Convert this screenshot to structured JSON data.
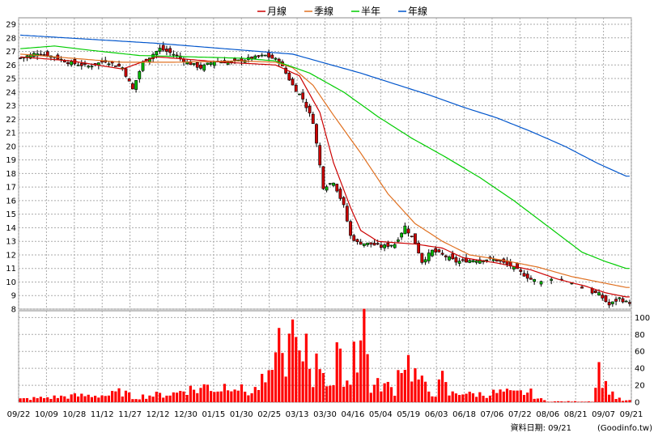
{
  "chart_data": {
    "type": "candlestick-with-volume",
    "legend": [
      {
        "name": "月線",
        "color": "#cc0000"
      },
      {
        "name": "季線",
        "color": "#e07020"
      },
      {
        "name": "半年",
        "color": "#00cc00"
      },
      {
        "name": "年線",
        "color": "#0055cc"
      }
    ],
    "legend_position": "top-center",
    "price_axis": {
      "min": 8,
      "max": 29,
      "ticks": [
        8,
        9,
        10,
        11,
        12,
        13,
        14,
        15,
        16,
        17,
        18,
        19,
        20,
        21,
        22,
        23,
        24,
        25,
        26,
        27,
        28,
        29
      ],
      "position": "left"
    },
    "volume_axis": {
      "min": 0,
      "max": 100,
      "ticks": [
        0,
        20,
        40,
        60,
        80,
        100
      ],
      "position": "right"
    },
    "x_labels": [
      "09/22",
      "10/09",
      "10/28",
      "11/12",
      "11/27",
      "12/12",
      "12/30",
      "01/15",
      "01/30",
      "02/25",
      "03/13",
      "03/30",
      "04/16",
      "05/04",
      "05/19",
      "06/03",
      "06/18",
      "07/06",
      "07/22",
      "08/06",
      "08/21",
      "09/07",
      "09/21"
    ],
    "grid": true,
    "up_color": "#00bb00",
    "down_color": "#cc0000",
    "volume_color": "#ff0000",
    "price_anchors": [
      [
        0,
        26.5
      ],
      [
        5,
        26.9
      ],
      [
        10,
        26.6
      ],
      [
        14,
        26.2
      ],
      [
        20,
        25.9
      ],
      [
        25,
        26.3
      ],
      [
        30,
        25.8
      ],
      [
        33,
        24.2
      ],
      [
        36,
        26.2
      ],
      [
        41,
        27.2
      ],
      [
        45,
        26.8
      ],
      [
        49,
        26.2
      ],
      [
        53,
        25.8
      ],
      [
        57,
        26.3
      ],
      [
        62,
        26.2
      ],
      [
        66,
        26.4
      ],
      [
        72,
        26.7
      ],
      [
        76,
        26.3
      ],
      [
        80,
        24.5
      ],
      [
        83,
        23.5
      ],
      [
        86,
        21.8
      ],
      [
        89,
        17.0
      ],
      [
        92,
        17.4
      ],
      [
        95,
        15.6
      ],
      [
        97,
        13.4
      ],
      [
        99,
        12.9
      ],
      [
        103,
        12.8
      ],
      [
        106,
        12.6
      ],
      [
        110,
        12.8
      ],
      [
        113,
        14.1
      ],
      [
        116,
        12.9
      ],
      [
        118,
        11.5
      ],
      [
        121,
        12.3
      ],
      [
        124,
        12.0
      ],
      [
        128,
        11.5
      ],
      [
        132,
        11.6
      ],
      [
        136,
        11.7
      ],
      [
        140,
        11.6
      ],
      [
        144,
        11.2
      ],
      [
        147,
        10.7
      ],
      [
        150,
        10.2
      ],
      [
        153,
        10.0
      ],
      [
        156,
        10.3
      ],
      [
        160,
        10.1
      ],
      [
        163,
        9.9
      ],
      [
        166,
        9.4
      ],
      [
        170,
        9.1
      ],
      [
        173,
        8.3
      ],
      [
        176,
        8.8
      ],
      [
        178,
        8.5
      ]
    ],
    "volume_anchors": [
      [
        0,
        4
      ],
      [
        8,
        6
      ],
      [
        15,
        8
      ],
      [
        22,
        9
      ],
      [
        26,
        9
      ],
      [
        30,
        14
      ],
      [
        33,
        6
      ],
      [
        38,
        9
      ],
      [
        42,
        10
      ],
      [
        46,
        12
      ],
      [
        48,
        18
      ],
      [
        52,
        16
      ],
      [
        55,
        22
      ],
      [
        58,
        16
      ],
      [
        62,
        27
      ],
      [
        65,
        16
      ],
      [
        68,
        12
      ],
      [
        71,
        25
      ],
      [
        74,
        30
      ],
      [
        75,
        106
      ],
      [
        77,
        55
      ],
      [
        79,
        65
      ],
      [
        80,
        92
      ],
      [
        82,
        48
      ],
      [
        83,
        63
      ],
      [
        84,
        88
      ],
      [
        86,
        33
      ],
      [
        88,
        60
      ],
      [
        90,
        30
      ],
      [
        92,
        22
      ],
      [
        93,
        56
      ],
      [
        95,
        40
      ],
      [
        97,
        22
      ],
      [
        98,
        106
      ],
      [
        99,
        60
      ],
      [
        101,
        106
      ],
      [
        103,
        18
      ],
      [
        106,
        24
      ],
      [
        108,
        20
      ],
      [
        110,
        16
      ],
      [
        112,
        60
      ],
      [
        114,
        52
      ],
      [
        116,
        36
      ],
      [
        118,
        24
      ],
      [
        120,
        15
      ],
      [
        122,
        12
      ],
      [
        124,
        30
      ],
      [
        126,
        10
      ],
      [
        128,
        12
      ],
      [
        130,
        14
      ],
      [
        132,
        10
      ],
      [
        134,
        11
      ],
      [
        136,
        10
      ],
      [
        139,
        12
      ],
      [
        142,
        13
      ],
      [
        145,
        11
      ],
      [
        148,
        13
      ],
      [
        150,
        12
      ],
      [
        152,
        5
      ],
      [
        155,
        1
      ],
      [
        160,
        1
      ],
      [
        165,
        1
      ],
      [
        168,
        1
      ],
      [
        170,
        44
      ],
      [
        171,
        36
      ],
      [
        172,
        20
      ],
      [
        173,
        18
      ],
      [
        175,
        6
      ],
      [
        177,
        2
      ]
    ],
    "ma_anchors": {
      "月線": [
        [
          0,
          26.6
        ],
        [
          15,
          26.3
        ],
        [
          30,
          25.7
        ],
        [
          40,
          26.6
        ],
        [
          60,
          26.2
        ],
        [
          75,
          26.0
        ],
        [
          82,
          25.2
        ],
        [
          88,
          22.5
        ],
        [
          92,
          18.8
        ],
        [
          97,
          15.5
        ],
        [
          100,
          13.8
        ],
        [
          105,
          13.0
        ],
        [
          110,
          12.9
        ],
        [
          116,
          12.8
        ],
        [
          124,
          12.5
        ],
        [
          130,
          11.8
        ],
        [
          140,
          11.4
        ],
        [
          150,
          10.9
        ],
        [
          158,
          10.2
        ],
        [
          166,
          9.7
        ],
        [
          172,
          9.2
        ],
        [
          178,
          8.9
        ]
      ],
      "季線": [
        [
          0,
          26.8
        ],
        [
          15,
          26.5
        ],
        [
          30,
          26.2
        ],
        [
          45,
          26.2
        ],
        [
          65,
          26.3
        ],
        [
          75,
          26.2
        ],
        [
          80,
          25.8
        ],
        [
          86,
          24.5
        ],
        [
          92,
          22.3
        ],
        [
          100,
          19.5
        ],
        [
          108,
          16.5
        ],
        [
          116,
          14.3
        ],
        [
          124,
          13.0
        ],
        [
          132,
          12.0
        ],
        [
          142,
          11.6
        ],
        [
          152,
          11.1
        ],
        [
          162,
          10.4
        ],
        [
          172,
          9.9
        ],
        [
          178,
          9.6
        ]
      ],
      "半年": [
        [
          0,
          27.2
        ],
        [
          10,
          27.4
        ],
        [
          20,
          27.1
        ],
        [
          35,
          26.7
        ],
        [
          50,
          26.6
        ],
        [
          65,
          26.5
        ],
        [
          75,
          26.3
        ],
        [
          85,
          25.4
        ],
        [
          95,
          24.0
        ],
        [
          105,
          22.2
        ],
        [
          115,
          20.6
        ],
        [
          125,
          19.2
        ],
        [
          135,
          17.7
        ],
        [
          145,
          16.0
        ],
        [
          155,
          14.1
        ],
        [
          165,
          12.2
        ],
        [
          172,
          11.5
        ],
        [
          178,
          11.0
        ]
      ],
      "年線": [
        [
          0,
          28.2
        ],
        [
          20,
          27.9
        ],
        [
          40,
          27.6
        ],
        [
          60,
          27.2
        ],
        [
          75,
          26.9
        ],
        [
          80,
          26.8
        ],
        [
          90,
          26.1
        ],
        [
          100,
          25.4
        ],
        [
          110,
          24.6
        ],
        [
          120,
          23.8
        ],
        [
          130,
          22.9
        ],
        [
          140,
          22.1
        ],
        [
          150,
          21.1
        ],
        [
          160,
          20.0
        ],
        [
          170,
          18.7
        ],
        [
          178,
          17.8
        ]
      ]
    },
    "footer": "資料日期: 09/21",
    "source": "(Goodinfo.tw)"
  }
}
